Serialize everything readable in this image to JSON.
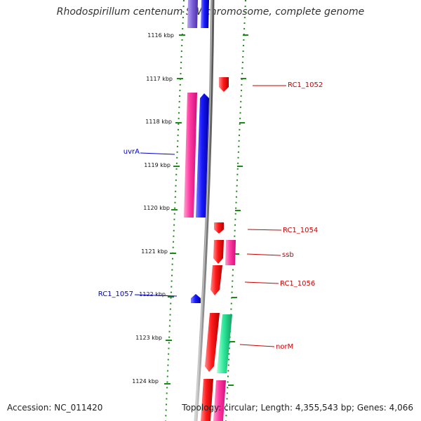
{
  "title": "Rhodospirillum centenum SW chromosome, complete genome",
  "footer": {
    "accession_label": "Accession:",
    "accession": "NC_011420",
    "topology_label": "Topology:",
    "topology": "circular",
    "length_label": "Length:",
    "length": "4,355,543 bp",
    "genes_label": "Genes:",
    "genes": "4,066"
  },
  "ruler": {
    "unit": "kbp",
    "ticks": [
      "1116 kbp",
      "1117 kbp",
      "1118 kbp",
      "1119 kbp",
      "1120 kbp",
      "1121 kbp",
      "1122 kbp",
      "1123 kbp",
      "1124 kbp"
    ]
  },
  "genes": {
    "labels": {
      "rc1_1052": "RC1_1052",
      "uvra": "uvrA",
      "rc1_1054": "RC1_1054",
      "ssb": "ssb",
      "rc1_1056": "RC1_1056",
      "rc1_1057": "RC1_1057",
      "norm": "norM"
    },
    "strands": {
      "rc1_1052": "forward",
      "uvra": "reverse",
      "rc1_1054": "forward",
      "ssb": "forward",
      "rc1_1056": "forward",
      "rc1_1057": "reverse",
      "norm": "forward"
    }
  },
  "colors": {
    "forward_gene": "#e60000",
    "reverse_gene": "#0000e6",
    "pink_track": "#ff2c9b",
    "green_track": "#22dd88",
    "purple_track": "#6a4fc8",
    "backbone": "#888888",
    "ruler_dots": "#1a8a1a",
    "forward_label": "#cc0000",
    "reverse_label": "#0000cc"
  }
}
